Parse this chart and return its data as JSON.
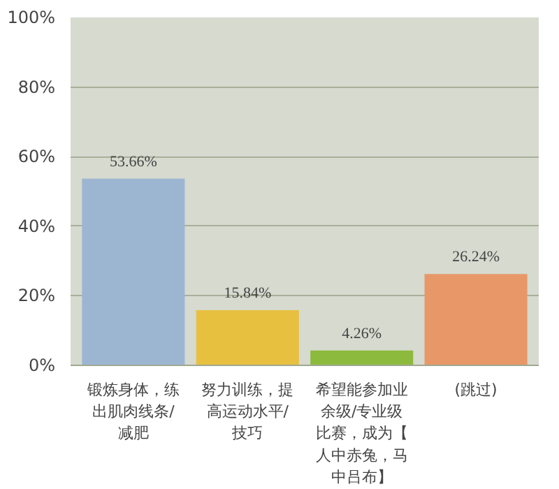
{
  "chart_data": {
    "type": "bar",
    "categories": [
      "锻炼身体，练出肌肉线条/减肥",
      "努力训练，提高运动水平/技巧",
      "希望能参加业余级/专业级比赛，成为【人中赤兔，马中吕布】",
      "(跳过)"
    ],
    "values": [
      53.66,
      15.84,
      4.26,
      26.24
    ],
    "colors": [
      "#9cb6d2",
      "#e8c040",
      "#8cba3c",
      "#e89868"
    ],
    "value_labels": [
      "53.66%",
      "15.84%",
      "4.26%",
      "26.24%"
    ],
    "ylim": [
      0,
      100
    ],
    "yticks": [
      {
        "value": 0,
        "label": "0%"
      },
      {
        "value": 20,
        "label": "20%"
      },
      {
        "value": 40,
        "label": "40%"
      },
      {
        "value": 60,
        "label": "60%"
      },
      {
        "value": 80,
        "label": "80%"
      },
      {
        "value": 100,
        "label": "100%"
      }
    ],
    "grid": "y"
  }
}
